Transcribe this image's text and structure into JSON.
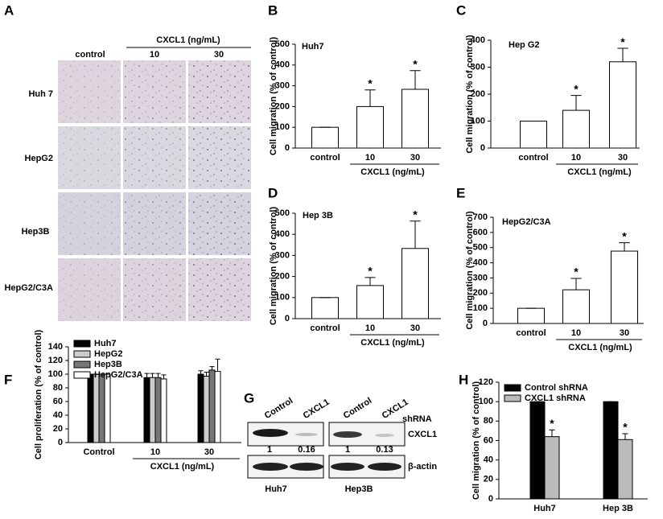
{
  "panel_a": {
    "panel": "A",
    "column_header": "control",
    "group_label": "CXCL1 (ng/mL)",
    "group_columns": [
      "10",
      "30"
    ],
    "rows": [
      "Huh 7",
      "HepG2",
      "Hep3B",
      "HepG2/C3A"
    ]
  },
  "panel_g": {
    "panel": "G",
    "lanes": [
      "Control",
      "CXCL1",
      "Control",
      "CXCL1"
    ],
    "lane_group": "shRNA",
    "bands": [
      "CXCL1",
      "β-actin"
    ],
    "ratios": [
      1,
      0.16,
      1,
      0.13
    ],
    "cells": [
      "Huh7",
      "Hep3B"
    ]
  },
  "chart_data": [
    {
      "type": "bar",
      "panel": "B",
      "title": "Huh7",
      "ylabel": "Cell migration (% of control)",
      "categories": [
        "control",
        "10",
        "30"
      ],
      "group_label": "CXCL1 (ng/mL)",
      "series": [
        {
          "color": "#ffffff",
          "values": [
            100,
            200,
            283
          ],
          "errors": [
            0,
            80,
            90
          ],
          "significance": [
            null,
            "*",
            "*"
          ]
        }
      ],
      "ylim": [
        0,
        500
      ],
      "yticks": [
        0,
        100,
        200,
        300,
        400,
        500
      ]
    },
    {
      "type": "bar",
      "panel": "C",
      "title": "Hep G2",
      "ylabel": "Cell migration (% of control)",
      "categories": [
        "control",
        "10",
        "30"
      ],
      "group_label": "CXCL1 (ng/mL)",
      "series": [
        {
          "color": "#ffffff",
          "values": [
            100,
            140,
            320
          ],
          "errors": [
            0,
            55,
            50
          ],
          "significance": [
            null,
            "*",
            "*"
          ]
        }
      ],
      "ylim": [
        0,
        400
      ],
      "yticks": [
        0,
        100,
        200,
        300,
        400
      ]
    },
    {
      "type": "bar",
      "panel": "D",
      "title": "Hep 3B",
      "ylabel": "Cell migration (% of control)",
      "categories": [
        "control",
        "10",
        "30"
      ],
      "group_label": "CXCL1 (ng/mL)",
      "series": [
        {
          "color": "#ffffff",
          "values": [
            100,
            157,
            333
          ],
          "errors": [
            0,
            38,
            130
          ],
          "significance": [
            null,
            "*",
            "*"
          ]
        }
      ],
      "ylim": [
        0,
        500
      ],
      "yticks": [
        0,
        100,
        200,
        300,
        400,
        500
      ]
    },
    {
      "type": "bar",
      "panel": "E",
      "title": "HepG2/C3A",
      "ylabel": "Cell migration (% of control)",
      "categories": [
        "control",
        "10",
        "30"
      ],
      "group_label": "CXCL1 (ng/mL)",
      "series": [
        {
          "color": "#ffffff",
          "values": [
            100,
            222,
            477
          ],
          "errors": [
            0,
            75,
            55
          ],
          "significance": [
            null,
            "*",
            "*"
          ]
        }
      ],
      "ylim": [
        0,
        700
      ],
      "yticks": [
        0,
        100,
        200,
        300,
        400,
        500,
        600,
        700
      ]
    },
    {
      "type": "bar",
      "panel": "F",
      "ylabel": "Cell proliferation (% of control)",
      "categories": [
        "Control",
        "10",
        "30"
      ],
      "group_label": "CXCL1 (ng/mL)",
      "legend": "upper left",
      "series": [
        {
          "name": "Huh7",
          "color": "#000000",
          "values": [
            100,
            95,
            100
          ],
          "errors": [
            0,
            6,
            5
          ]
        },
        {
          "name": "HepG2",
          "color": "#cccccc",
          "values": [
            100,
            95,
            97
          ],
          "errors": [
            0,
            6,
            6
          ]
        },
        {
          "name": "Hep3B",
          "color": "#777777",
          "values": [
            100,
            95,
            106
          ],
          "errors": [
            0,
            6,
            5
          ]
        },
        {
          "name": "HepG2/C3A",
          "color": "#ffffff",
          "values": [
            100,
            93,
            104
          ],
          "errors": [
            0,
            6,
            18
          ]
        }
      ],
      "ylim": [
        0,
        140
      ],
      "yticks": [
        0,
        20,
        40,
        60,
        80,
        100,
        120,
        140
      ]
    },
    {
      "type": "bar",
      "panel": "H",
      "ylabel": "Cell migration (% of control)",
      "categories": [
        "Huh7",
        "Hep 3B"
      ],
      "legend": "upper left",
      "series": [
        {
          "name": "Control shRNA",
          "color": "#000000",
          "values": [
            100,
            100
          ],
          "errors": [
            0,
            0
          ]
        },
        {
          "name": "CXCL1 shRNA",
          "color": "#bbbbbb",
          "values": [
            64,
            61
          ],
          "errors": [
            7,
            6
          ],
          "significance": [
            "*",
            "*"
          ]
        }
      ],
      "ylim": [
        0,
        120
      ],
      "yticks": [
        0,
        20,
        40,
        60,
        80,
        100,
        120
      ]
    }
  ]
}
